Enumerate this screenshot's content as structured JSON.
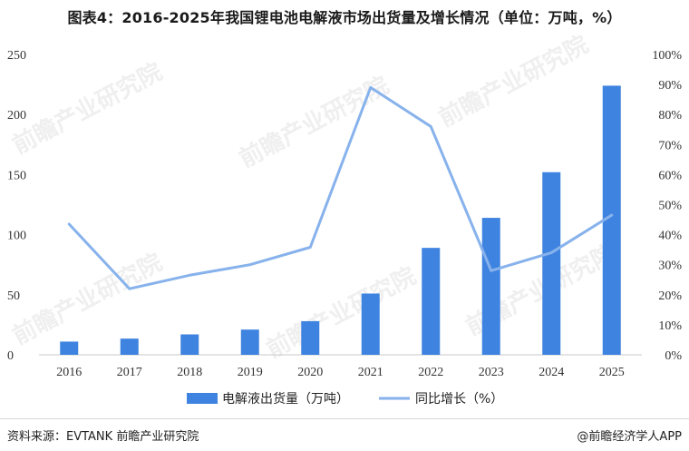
{
  "title": "图表4：2016-2025年我国锂电池电解液市场出货量及增长情况（单位：万吨，%）",
  "source": "资料来源：EVTANK  前瞻产业研究院",
  "brand": "@前瞻经济学人APP",
  "watermark": "前瞻产业研究院",
  "chart_data": {
    "type": "bar",
    "categories": [
      "2016",
      "2017",
      "2018",
      "2019",
      "2020",
      "2021",
      "2022",
      "2023",
      "2024",
      "2025"
    ],
    "series": [
      {
        "name": "电解液出货量（万吨）",
        "type": "bar",
        "axis": "left",
        "color": "#3f83e0",
        "values": [
          11,
          13.5,
          17,
          21,
          28,
          51,
          89,
          114,
          152,
          224
        ]
      },
      {
        "name": "同比增长（%）",
        "type": "line",
        "axis": "right",
        "color": "#87b2ec",
        "values": [
          43.5,
          22,
          26.5,
          30,
          35.8,
          89,
          76,
          28,
          34,
          46.5
        ]
      }
    ],
    "y_left": {
      "min": 0,
      "max": 250,
      "ticks": [
        "0",
        "50",
        "100",
        "150",
        "200",
        "250"
      ]
    },
    "y_right": {
      "min": 0,
      "max": 100,
      "ticks": [
        "0%",
        "10%",
        "20%",
        "30%",
        "40%",
        "50%",
        "60%",
        "70%",
        "80%",
        "90%",
        "100%"
      ]
    },
    "grid": false,
    "legend_position": "bottom"
  }
}
